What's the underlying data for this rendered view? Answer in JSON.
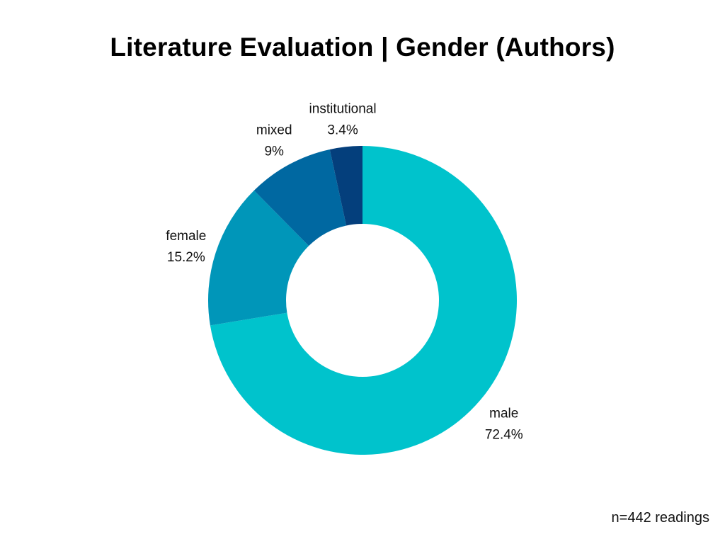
{
  "chart_data": {
    "type": "pie",
    "title": "Literature Evaluation | Gender (Authors)",
    "categories": [
      "male",
      "female",
      "mixed",
      "institutional"
    ],
    "values": [
      72.4,
      15.2,
      9,
      3.4
    ],
    "value_labels": [
      "72.4%",
      "15.2%",
      "9%",
      "3.4%"
    ],
    "colors": [
      "#00C3CC",
      "#0096B9",
      "#0068A1",
      "#043F7C"
    ],
    "donut": true
  },
  "footnote": "n=442 readings"
}
